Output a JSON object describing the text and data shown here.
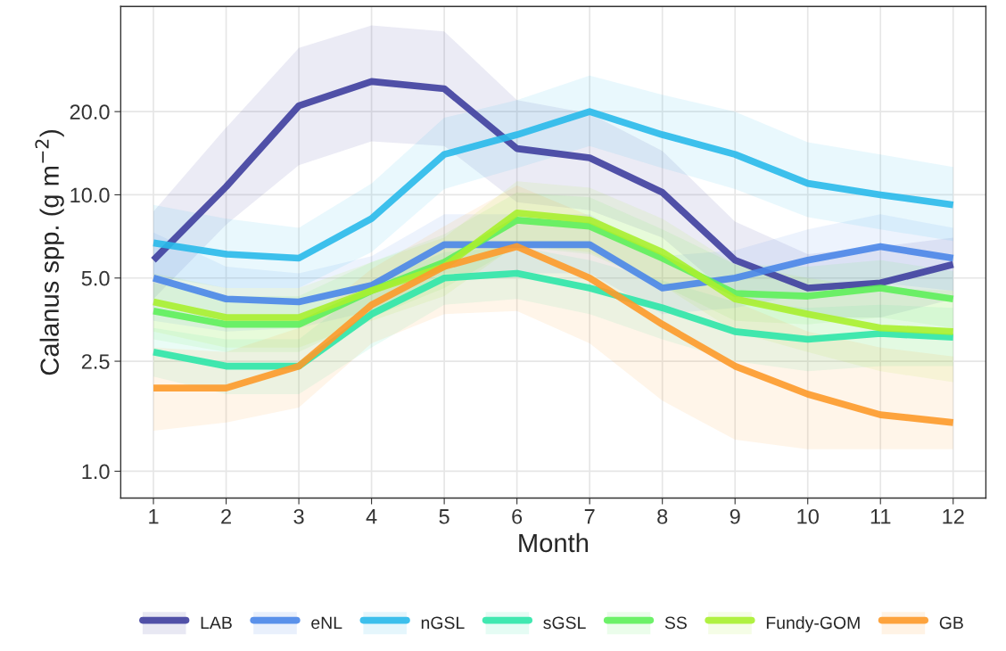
{
  "chart_data": {
    "type": "line",
    "xlabel": "Month",
    "ylabel": "Calanus spp. (g m$^{−2}$)",
    "x": [
      1,
      2,
      3,
      4,
      5,
      6,
      7,
      8,
      9,
      10,
      11,
      12
    ],
    "xlim": [
      0.55,
      12.45
    ],
    "xticks": [
      1,
      2,
      3,
      4,
      5,
      6,
      7,
      8,
      9,
      10,
      11,
      12
    ],
    "ylim": [
      0.8,
      48
    ],
    "yticks": [
      {
        "value": 1,
        "label": "1.0"
      },
      {
        "value": 2.5,
        "label": "2.5"
      },
      {
        "value": 5,
        "label": "5.0"
      },
      {
        "value": 10,
        "label": "10.0"
      },
      {
        "value": 20,
        "label": "20.0"
      }
    ],
    "log": true,
    "grid": true,
    "legend": "bottom",
    "line_style": "solid",
    "marker": "none",
    "series": [
      {
        "name": "LAB",
        "color": "#3f3f9f",
        "values": [
          5.8,
          10.7,
          21,
          25.7,
          24.2,
          14.7,
          13.6,
          10.2,
          5.8,
          4.6,
          4.8,
          5.6
        ],
        "lower": [
          4.2,
          7.8,
          12.8,
          15.6,
          15,
          9.4,
          8.8,
          7,
          4.2,
          3.6,
          3.6,
          4.2
        ],
        "upper": [
          8.7,
          17.5,
          34,
          41,
          39,
          22,
          19.7,
          14.4,
          8,
          6.1,
          6.5,
          7
        ]
      },
      {
        "name": "eNL",
        "color": "#4a86e8",
        "values": [
          5.0,
          4.2,
          4.1,
          4.7,
          6.6,
          6.6,
          6.6,
          4.6,
          5.0,
          5.8,
          6.5,
          5.9
        ],
        "lower": [
          3.5,
          3.2,
          3.3,
          3.8,
          5.2,
          5.2,
          5.2,
          3.7,
          3.9,
          4.4,
          4.8,
          4.5
        ],
        "upper": [
          7.3,
          5.5,
          5.2,
          6,
          8.5,
          8.5,
          8.5,
          6,
          6.3,
          7.5,
          8.5,
          7.6
        ]
      },
      {
        "name": "nGSL",
        "color": "#29b9ea",
        "values": [
          6.7,
          6.1,
          5.9,
          8.2,
          14,
          16.5,
          20,
          16.5,
          14,
          11,
          10,
          9.2
        ],
        "lower": [
          5.1,
          4.6,
          4.6,
          6.2,
          10.5,
          12.5,
          15,
          12.5,
          10.5,
          8.3,
          7.5,
          6.8
        ],
        "upper": [
          9.2,
          8.2,
          7.6,
          11,
          19,
          22,
          27,
          23,
          20,
          15.5,
          14,
          12.6
        ]
      },
      {
        "name": "sGSL",
        "color": "#2de6a8",
        "values": [
          2.7,
          2.4,
          2.4,
          3.7,
          5.0,
          5.2,
          4.6,
          3.9,
          3.2,
          3.0,
          3.15,
          3.05
        ],
        "lower": [
          2.2,
          1.9,
          1.9,
          2.8,
          4,
          4.2,
          3.7,
          3,
          2.5,
          2.3,
          2.4,
          2.4
        ],
        "upper": [
          3.3,
          3,
          3,
          4.8,
          6.2,
          6.5,
          5.8,
          4.9,
          4.1,
          3.9,
          4,
          3.9
        ]
      },
      {
        "name": "SS",
        "color": "#5ef05a",
        "values": [
          3.8,
          3.4,
          3.4,
          4.5,
          5.7,
          8.1,
          7.7,
          5.9,
          4.4,
          4.3,
          4.6,
          4.2
        ],
        "lower": [
          3.0,
          2.7,
          2.7,
          3.6,
          4.6,
          6.5,
          6.1,
          4.7,
          3.5,
          3.4,
          3.6,
          3.3
        ],
        "upper": [
          4.8,
          4.3,
          4.3,
          5.7,
          7.2,
          10.2,
          9.8,
          7.5,
          5.6,
          5.5,
          5.8,
          5.3
        ]
      },
      {
        "name": "Fundy-GOM",
        "color": "#a9f02f",
        "values": [
          4.1,
          3.6,
          3.6,
          4.5,
          5.5,
          8.6,
          8.1,
          6.2,
          4.2,
          3.7,
          3.3,
          3.2
        ],
        "lower": [
          3.2,
          2.8,
          2.8,
          3.5,
          4.3,
          6.6,
          6.2,
          4.7,
          3.2,
          2.7,
          2.3,
          2.1
        ],
        "upper": [
          5.2,
          4.6,
          4.6,
          5.7,
          7,
          11.2,
          10.6,
          8.2,
          5.6,
          5,
          4.6,
          4.5
        ]
      },
      {
        "name": "GB",
        "color": "#fd9a2a",
        "values": [
          2.0,
          2.0,
          2.4,
          4.0,
          5.5,
          6.5,
          5.0,
          3.4,
          2.4,
          1.9,
          1.6,
          1.5
        ],
        "lower": [
          1.4,
          1.5,
          1.7,
          2.9,
          3.7,
          3.8,
          2.9,
          1.8,
          1.3,
          1.2,
          1.2,
          1.2
        ],
        "upper": [
          2.8,
          2.7,
          3.3,
          5.4,
          7.7,
          10.8,
          8.4,
          6.1,
          4.1,
          3.2,
          2.8,
          2.6
        ]
      }
    ]
  }
}
